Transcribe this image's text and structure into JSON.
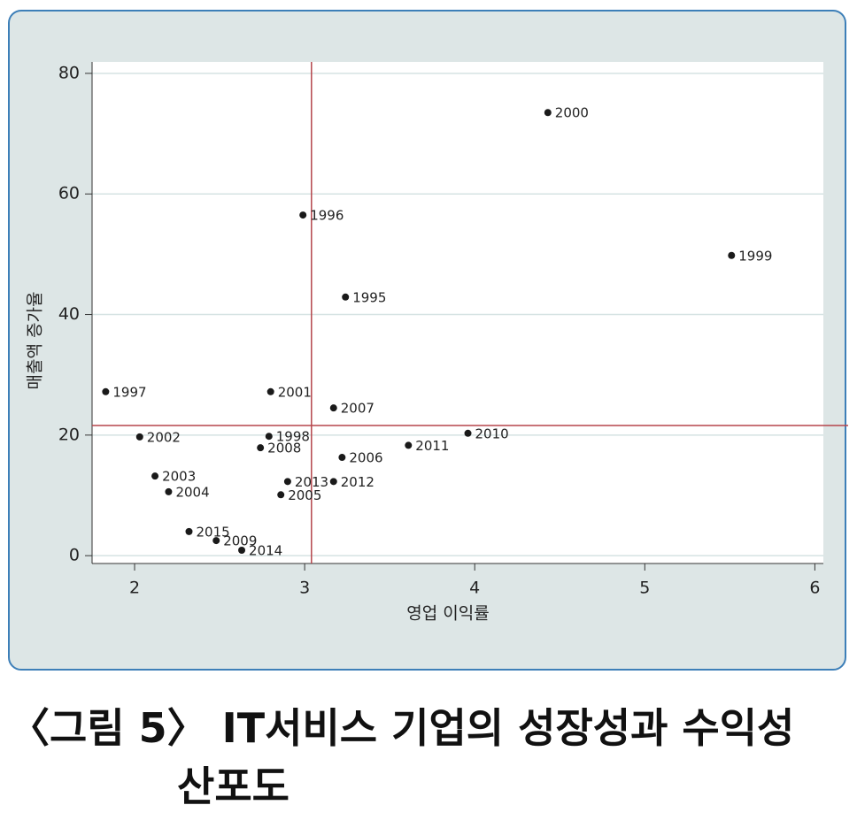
{
  "chart_data": {
    "type": "scatter",
    "x_label": "영업 이익률",
    "y_label": "매출액 증가율",
    "labels": [
      "1995",
      "1996",
      "1997",
      "1998",
      "1999",
      "2000",
      "2001",
      "2002",
      "2003",
      "2004",
      "2005",
      "2006",
      "2007",
      "2008",
      "2009",
      "2010",
      "2011",
      "2012",
      "2013",
      "2014",
      "2015"
    ],
    "x": [
      3.24,
      2.99,
      1.83,
      2.79,
      5.51,
      4.43,
      2.8,
      2.03,
      2.12,
      2.2,
      2.86,
      3.22,
      3.17,
      2.74,
      2.48,
      3.96,
      3.61,
      3.17,
      2.9,
      2.63,
      2.32
    ],
    "values": [
      42.9,
      56.5,
      27.2,
      19.8,
      49.8,
      73.5,
      27.2,
      19.7,
      13.2,
      10.6,
      10.1,
      16.3,
      24.5,
      17.9,
      2.5,
      20.3,
      18.3,
      12.3,
      12.3,
      0.9,
      4.0
    ],
    "color": "#1a1a1a",
    "xlim": [
      1.75,
      6.05
    ],
    "ylim": [
      -1.3,
      81.9
    ],
    "xticks": [
      2,
      3,
      4,
      5,
      6
    ],
    "yticks": [
      0,
      20,
      40,
      60,
      80
    ],
    "grid": true,
    "reference_x": 3.04,
    "reference_y": 21.6,
    "reference_color": "#b5454b"
  },
  "caption": "〈그림 5〉 IT서비스 기업의 성장성과 수익성 산포도"
}
